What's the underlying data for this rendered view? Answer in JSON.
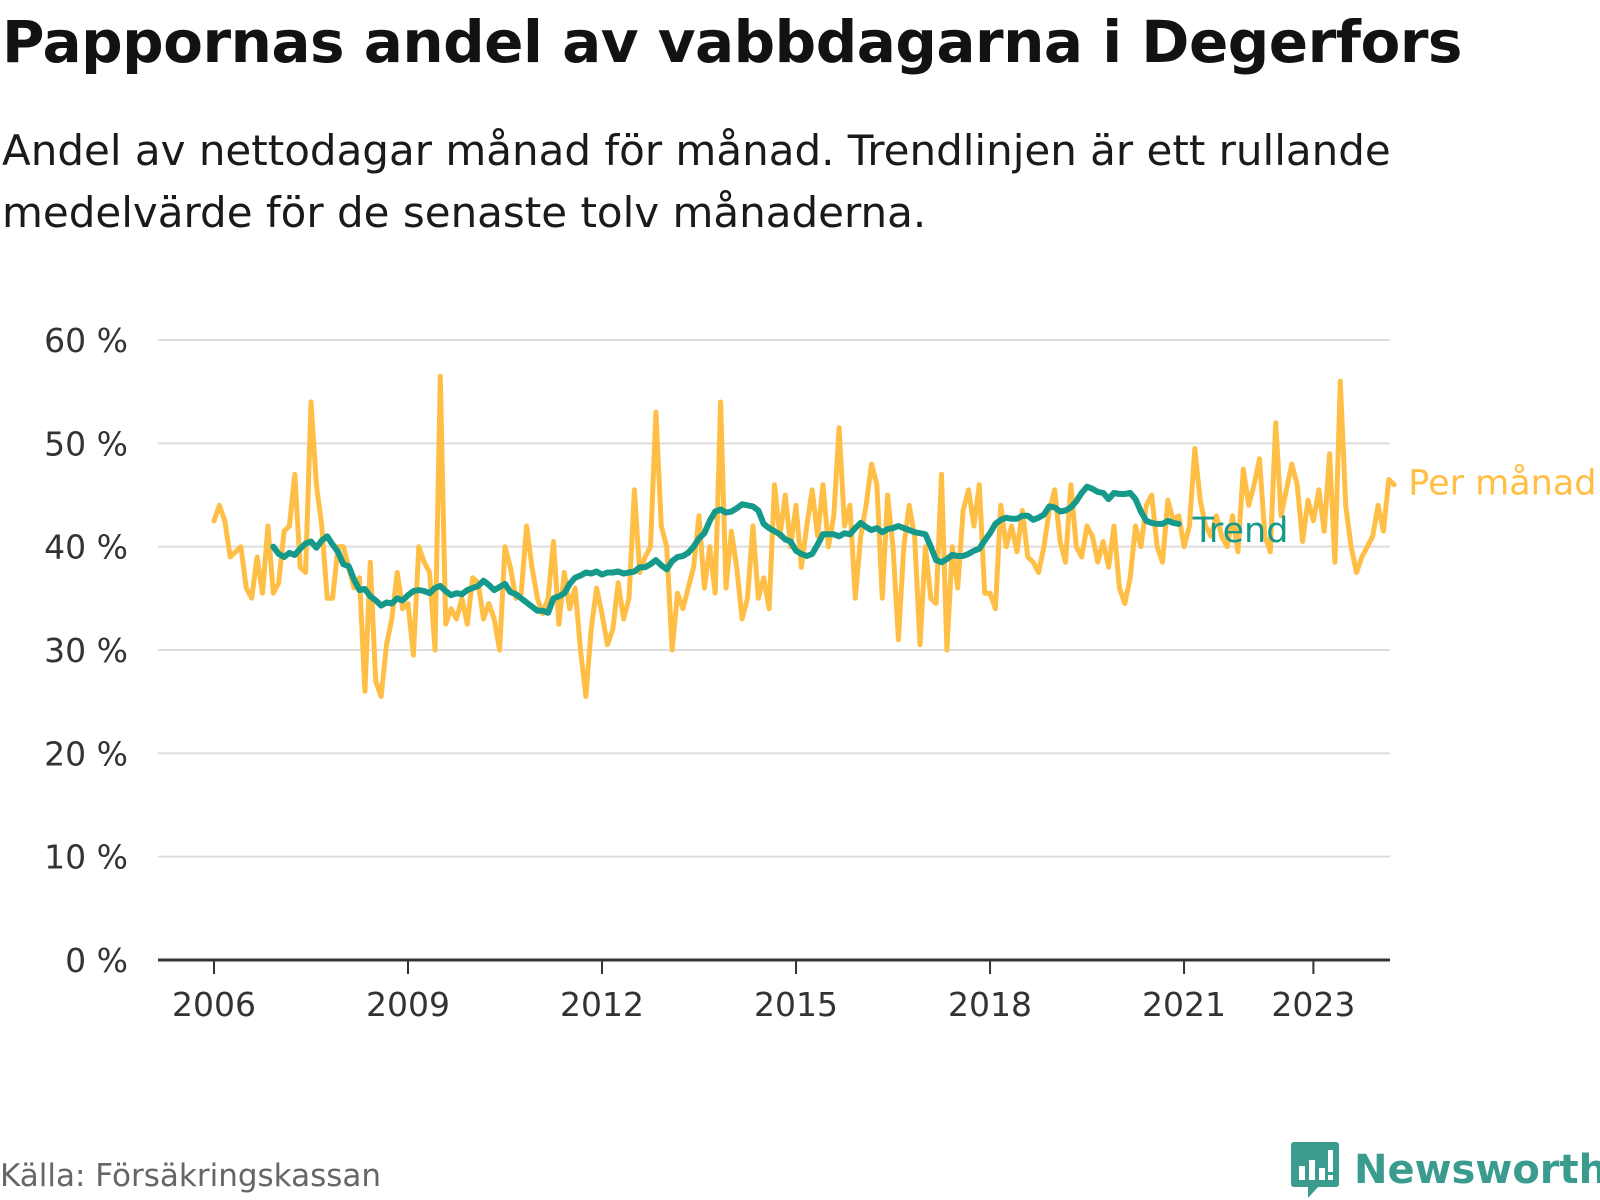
{
  "header": {
    "title": "Pappornas andel av vabbdagarna i Degerfors",
    "subtitle": "Andel av nettodagar månad för månad. Trendlinjen är ett rullande medelvärde för de senaste tolv månaderna."
  },
  "footer": {
    "source": "Källa: Försäkringskassan",
    "brand": "Newsworthy",
    "brand_icon": "bar-chart-bubble-icon"
  },
  "colors": {
    "monthly": "#ffbf47",
    "trend": "#14998a",
    "grid": "#dddddd",
    "axis": "#333333",
    "brand": "#3a9c8e"
  },
  "chart_data": {
    "type": "line",
    "title": "Pappornas andel av vabbdagarna i Degerfors",
    "xlabel": "",
    "ylabel": "",
    "y_unit": "%",
    "ylim": [
      0,
      60
    ],
    "y_ticks": [
      0,
      10,
      20,
      30,
      40,
      50,
      60
    ],
    "y_tick_labels": [
      "0 %",
      "10 %",
      "20 %",
      "30 %",
      "40 %",
      "50 %",
      "60 %"
    ],
    "x_ticks": [
      2006,
      2009,
      2012,
      2015,
      2018,
      2021,
      2023
    ],
    "x_tick_labels": [
      "2006",
      "2009",
      "2012",
      "2015",
      "2018",
      "2021",
      "2023"
    ],
    "x_start": "2006-01",
    "grid": true,
    "legend": "right-end labels",
    "series": [
      {
        "name": "Per månad",
        "values": [
          42.5,
          44.0,
          42.5,
          39.0,
          39.5,
          40.0,
          36.0,
          35.0,
          39.0,
          35.5,
          42.0,
          35.5,
          36.5,
          41.5,
          42.0,
          47.0,
          38.0,
          37.5,
          54.0,
          46.0,
          42.0,
          35.0,
          35.0,
          40.0,
          40.0,
          38.0,
          36.0,
          37.0,
          26.0,
          38.5,
          27.0,
          25.5,
          30.5,
          33.0,
          37.5,
          34.0,
          34.5,
          29.5,
          40.0,
          38.5,
          37.5,
          30.0,
          56.5,
          32.5,
          34.0,
          33.0,
          35.0,
          32.5,
          37.0,
          36.5,
          33.0,
          34.5,
          33.0,
          30.0,
          40.0,
          38.0,
          35.0,
          35.5,
          42.0,
          38.0,
          35.0,
          33.5,
          35.0,
          40.5,
          32.5,
          37.5,
          34.0,
          36.0,
          30.0,
          25.5,
          32.0,
          36.0,
          33.5,
          30.5,
          32.0,
          36.5,
          33.0,
          35.0,
          45.5,
          37.5,
          39.0,
          40.0,
          53.0,
          42.0,
          40.0,
          30.0,
          35.5,
          34.0,
          36.0,
          38.0,
          43.0,
          36.0,
          40.0,
          35.5,
          54.0,
          36.0,
          41.5,
          38.0,
          33.0,
          35.0,
          42.0,
          35.0,
          37.0,
          34.0,
          46.0,
          41.0,
          45.0,
          40.0,
          44.0,
          38.0,
          42.0,
          45.5,
          41.0,
          46.0,
          40.0,
          43.0,
          51.5,
          42.0,
          44.0,
          35.0,
          41.0,
          44.0,
          48.0,
          46.0,
          35.0,
          45.0,
          40.0,
          31.0,
          40.0,
          44.0,
          41.0,
          30.5,
          40.0,
          35.0,
          34.5,
          47.0,
          30.0,
          40.0,
          36.0,
          43.5,
          45.5,
          42.0,
          46.0,
          35.5,
          35.5,
          34.0,
          44.0,
          40.0,
          42.0,
          39.5,
          43.5,
          39.0,
          38.5,
          37.5,
          40.0,
          43.5,
          45.5,
          40.5,
          38.5,
          46.0,
          40.0,
          39.0,
          42.0,
          41.0,
          38.5,
          40.5,
          38.0,
          42.0,
          36.0,
          34.5,
          37.0,
          42.0,
          40.0,
          44.0,
          45.0,
          40.0,
          38.5,
          44.5,
          42.5,
          43.0,
          40.0,
          42.0,
          49.5,
          44.5,
          42.0,
          41.0,
          43.0,
          41.0,
          40.0,
          43.0,
          39.5,
          47.5,
          44.0,
          46.0,
          48.5,
          41.0,
          39.5,
          52.0,
          43.0,
          45.5,
          48.0,
          46.0,
          40.5,
          44.5,
          42.5,
          45.5,
          41.5,
          49.0,
          38.5,
          56.0,
          44.0,
          40.0,
          37.5,
          39.0,
          40.0,
          41.0,
          44.0,
          41.5,
          46.5,
          46.0
        ]
      },
      {
        "name": "Trend",
        "x_start": "2006-12",
        "values": [
          40.0,
          39.3,
          39.0,
          39.4,
          39.2,
          39.8,
          40.3,
          40.5,
          39.9,
          40.6,
          41.0,
          40.2,
          39.5,
          38.3,
          38.1,
          36.8,
          35.8,
          35.9,
          35.2,
          34.8,
          34.3,
          34.6,
          34.5,
          35.0,
          34.8,
          35.3,
          35.7,
          35.8,
          35.7,
          35.5,
          36.0,
          36.2,
          35.7,
          35.3,
          35.5,
          35.4,
          35.8,
          36.0,
          36.2,
          36.7,
          36.3,
          35.8,
          36.1,
          36.4,
          35.6,
          35.4,
          35.0,
          34.6,
          34.2,
          33.8,
          33.8,
          33.6,
          35.0,
          35.2,
          35.5,
          36.4,
          37.0,
          37.2,
          37.5,
          37.4,
          37.6,
          37.3,
          37.5,
          37.5,
          37.6,
          37.4,
          37.5,
          37.6,
          38.0,
          38.0,
          38.3,
          38.7,
          38.2,
          37.8,
          38.6,
          39.0,
          39.1,
          39.4,
          40.0,
          40.8,
          41.3,
          42.5,
          43.4,
          43.6,
          43.3,
          43.4,
          43.7,
          44.1,
          44.0,
          43.9,
          43.5,
          42.2,
          41.8,
          41.5,
          41.2,
          40.7,
          40.5,
          39.6,
          39.3,
          39.1,
          39.3,
          40.2,
          41.2,
          41.2,
          41.2,
          41.0,
          41.3,
          41.2,
          41.8,
          42.3,
          41.9,
          41.6,
          41.8,
          41.4,
          41.7,
          41.8,
          42.0,
          41.8,
          41.6,
          41.4,
          41.3,
          41.2,
          40.0,
          38.7,
          38.5,
          38.8,
          39.2,
          39.1,
          39.1,
          39.3,
          39.6,
          39.8,
          40.6,
          41.3,
          42.2,
          42.6,
          42.8,
          42.7,
          42.7,
          43.0,
          43.0,
          42.6,
          42.8,
          43.1,
          43.9,
          43.8,
          43.4,
          43.5,
          43.8,
          44.4,
          45.2,
          45.8,
          45.6,
          45.3,
          45.2,
          44.6,
          45.2,
          45.1,
          45.1,
          45.2,
          44.6,
          43.4,
          42.5,
          42.3,
          42.2,
          42.2,
          42.5,
          42.3,
          42.2
        ]
      }
    ]
  }
}
